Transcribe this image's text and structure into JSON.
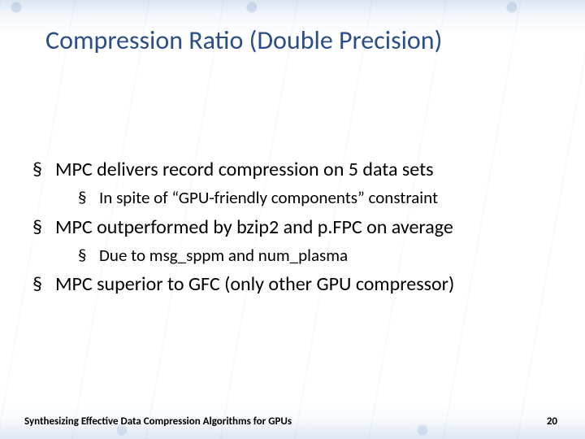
{
  "title": {
    "text": "Compression Ratio (Double Precision)",
    "color": "#2a4e86",
    "fontsize_pt": 32
  },
  "bullets": [
    {
      "text": "MPC delivers record compression on 5 data sets",
      "children": [
        {
          "text": "In spite of “GPU-friendly components” constraint"
        }
      ]
    },
    {
      "text": "MPC outperformed by bzip2 and p.FPC on average",
      "children": [
        {
          "text": "Due to msg_sppm and num_plasma"
        }
      ]
    },
    {
      "text": "MPC superior to GFC (only other GPU compressor)",
      "children": []
    }
  ],
  "body_fontsize_pt": 24,
  "sub_fontsize_pt": 21,
  "body_color": "#000000",
  "bullet_glyph": "§",
  "footer": {
    "text": "Synthesizing Effective Data Compression Algorithms for GPUs",
    "page_number": "20",
    "fontsize_pt": 13,
    "color": "#1c1c1c"
  },
  "background": {
    "base_color": "#ffffff",
    "circuit_tint": "#5a8cc8"
  }
}
